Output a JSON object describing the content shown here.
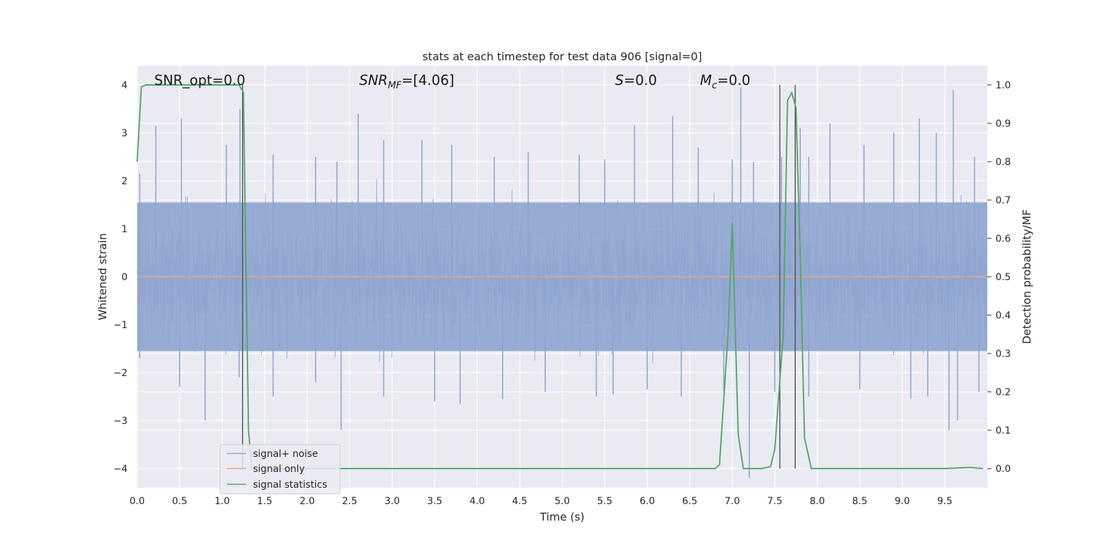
{
  "chart_data": {
    "type": "line",
    "title": "stats at each timestep for test data 906 [signal=0]",
    "xlabel": "Time (s)",
    "ylabel": "Whitened strain",
    "y2label": "Detection probability/MF",
    "xlim": [
      0.0,
      10.0
    ],
    "ylim": [
      -4.4,
      4.4
    ],
    "y2lim": [
      -0.05,
      1.05
    ],
    "xticks": [
      "0.0",
      "0.5",
      "1.0",
      "1.5",
      "2.0",
      "2.5",
      "3.0",
      "3.5",
      "4.0",
      "4.5",
      "5.0",
      "5.5",
      "6.0",
      "6.5",
      "7.0",
      "7.5",
      "8.0",
      "8.5",
      "9.0",
      "9.5"
    ],
    "xtick_values": [
      0.0,
      0.5,
      1.0,
      1.5,
      2.0,
      2.5,
      3.0,
      3.5,
      4.0,
      4.5,
      5.0,
      5.5,
      6.0,
      6.5,
      7.0,
      7.5,
      8.0,
      8.5,
      9.0,
      9.5
    ],
    "yticks": [
      "−4",
      "−3",
      "−2",
      "−1",
      "0",
      "1",
      "2",
      "3",
      "4"
    ],
    "ytick_values": [
      -4,
      -3,
      -2,
      -1,
      0,
      1,
      2,
      3,
      4
    ],
    "y2ticks": [
      "0.0",
      "0.1",
      "0.2",
      "0.3",
      "0.4",
      "0.5",
      "0.6",
      "0.7",
      "0.8",
      "0.9",
      "1.0"
    ],
    "y2tick_values": [
      0.0,
      0.1,
      0.2,
      0.3,
      0.4,
      0.5,
      0.6,
      0.7,
      0.8,
      0.9,
      1.0
    ],
    "grid": true,
    "legend_position": "lower-left",
    "annotations": {
      "snr_opt": "SNR_opt=0.0",
      "snr_mf_main": "SNR",
      "snr_mf_sub": "MF",
      "snr_mf_value": "=[4.06]",
      "s_var": "S",
      "s_value": "=0.0",
      "mc_var": "M",
      "mc_sub": "c",
      "mc_value": "=0.0"
    },
    "series": [
      {
        "name": "signal+ noise",
        "color": "#8fa5cf",
        "peaks_x": [
          0.03,
          0.22,
          0.52,
          1.05,
          1.21,
          1.6,
          2.1,
          2.35,
          2.6,
          2.9,
          3.35,
          3.7,
          4.2,
          4.6,
          5.2,
          5.5,
          5.85,
          6.3,
          6.6,
          7.0,
          7.1,
          7.25,
          7.58,
          7.8,
          7.9,
          8.15,
          8.55,
          8.9,
          9.2,
          9.4,
          9.6,
          9.85
        ],
        "peaks_y": [
          2.15,
          3.15,
          3.3,
          2.75,
          3.5,
          2.55,
          2.5,
          2.4,
          3.4,
          2.85,
          2.85,
          2.75,
          2.5,
          2.6,
          2.55,
          2.45,
          3.15,
          3.35,
          2.7,
          2.45,
          3.95,
          2.4,
          2.5,
          3.1,
          2.5,
          3.2,
          2.75,
          3.0,
          3.3,
          3.0,
          3.9,
          2.5
        ],
        "troughs_x": [
          0.03,
          0.5,
          0.8,
          1.2,
          1.6,
          2.1,
          2.4,
          2.9,
          3.5,
          3.8,
          4.3,
          4.8,
          5.4,
          5.6,
          6.0,
          6.4,
          6.9,
          7.2,
          7.5,
          7.9,
          8.5,
          9.1,
          9.3,
          9.55,
          9.65,
          9.9
        ],
        "troughs_y": [
          -1.7,
          -2.3,
          -3.0,
          -2.1,
          -2.5,
          -2.2,
          -3.2,
          -2.5,
          -2.6,
          -2.65,
          -2.55,
          -2.4,
          -2.5,
          -2.45,
          -2.35,
          -2.5,
          -2.4,
          -4.2,
          -2.4,
          -2.5,
          -2.35,
          -2.55,
          -2.5,
          -3.2,
          -3.0,
          -2.4
        ]
      },
      {
        "name": "signal only",
        "color": "#e8a58a",
        "x": [
          0.0,
          10.0
        ],
        "y": [
          0.0,
          0.0
        ]
      },
      {
        "name": "signal statistics",
        "color": "#55a868",
        "axis": "right",
        "x": [
          0.0,
          0.05,
          0.1,
          0.2,
          1.2,
          1.25,
          1.31,
          1.35,
          1.4,
          6.8,
          6.85,
          6.95,
          7.0,
          7.07,
          7.13,
          7.2,
          7.35,
          7.45,
          7.5,
          7.6,
          7.65,
          7.7,
          7.75,
          7.8,
          7.85,
          7.93,
          8.0,
          9.5,
          9.8,
          9.95
        ],
        "y": [
          0.8,
          0.995,
          1.0,
          1.0,
          1.0,
          0.98,
          0.1,
          0.0,
          0.0,
          0.0,
          0.01,
          0.35,
          0.64,
          0.09,
          0.0,
          0.0,
          0.0,
          0.005,
          0.05,
          0.35,
          0.96,
          0.98,
          0.94,
          0.55,
          0.08,
          0.0,
          0.0,
          0.0,
          0.003,
          0.0
        ]
      }
    ],
    "vertical_lines_x": [
      1.24,
      7.56,
      7.74
    ],
    "vertical_lines_color": "#555555"
  }
}
